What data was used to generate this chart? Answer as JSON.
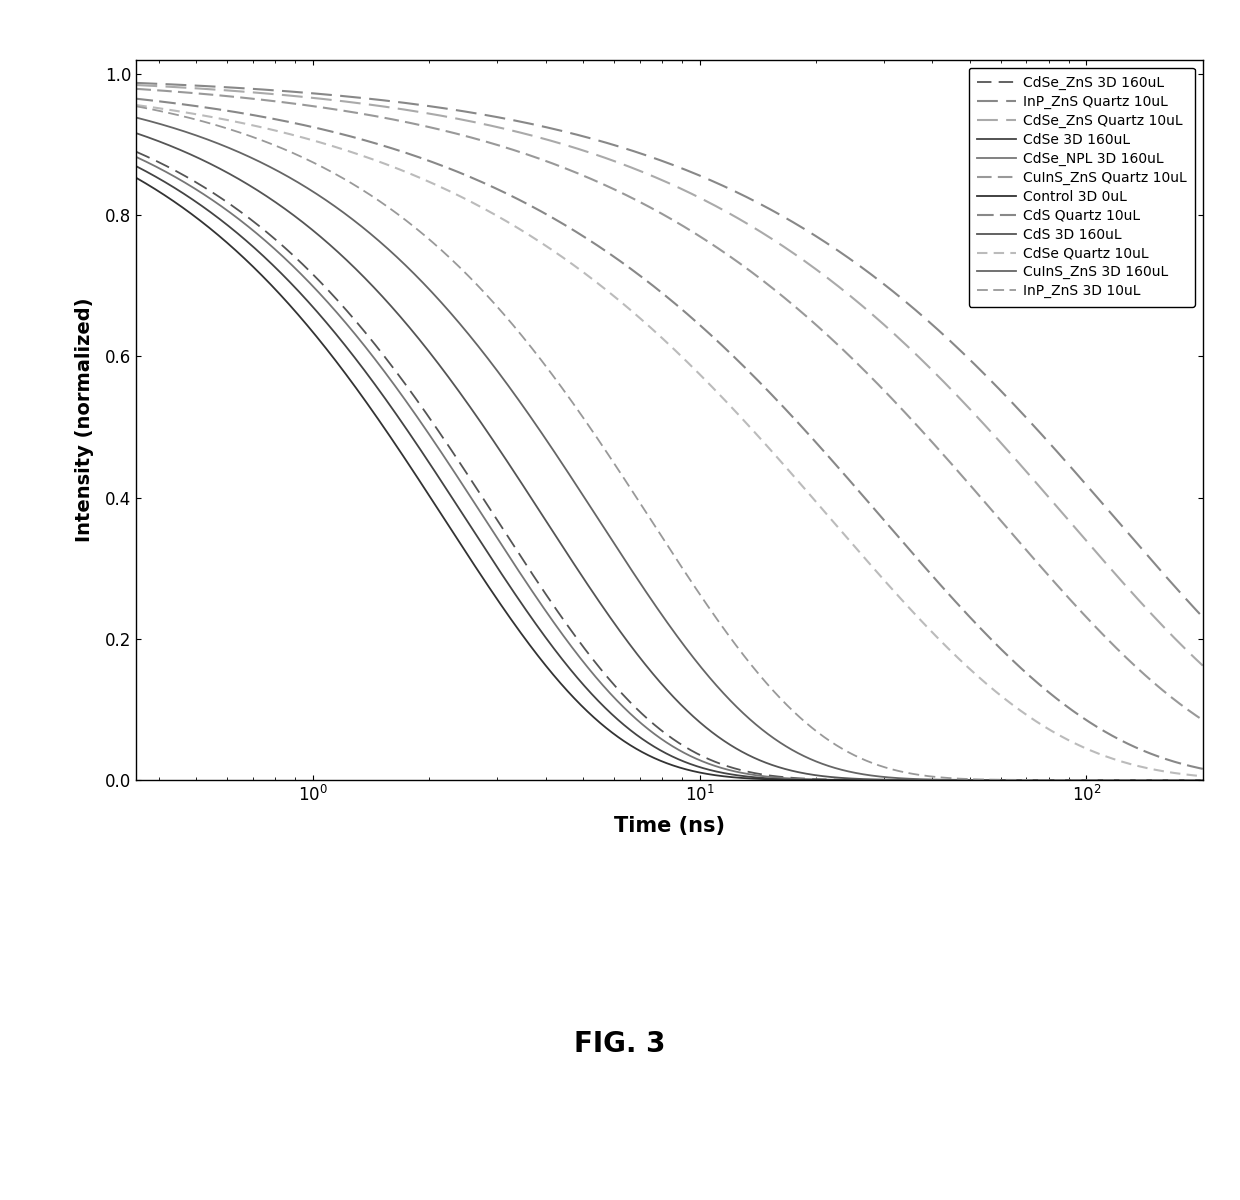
{
  "title": "",
  "xlabel": "Time (ns)",
  "ylabel": "Intensity (normalized)",
  "fig_label": "FIG. 3",
  "curves": [
    {
      "label": "CdSe_ZnS 3D 160uL",
      "tau": 3.0,
      "beta": 1.0,
      "linestyle": "--",
      "color": "#555555",
      "linewidth": 1.3,
      "dashes": [
        8,
        4
      ]
    },
    {
      "label": "InP_ZnS Quartz 10uL",
      "tau": 120.0,
      "beta": 0.75,
      "linestyle": "--",
      "color": "#888888",
      "linewidth": 1.5,
      "dashes": [
        10,
        4
      ]
    },
    {
      "label": "CdSe_ZnS Quartz 10uL",
      "tau": 90.0,
      "beta": 0.75,
      "linestyle": "--",
      "color": "#aaaaaa",
      "linewidth": 1.5,
      "dashes": [
        10,
        4
      ]
    },
    {
      "label": "CdSe 3D 160uL",
      "tau": 2.5,
      "beta": 1.0,
      "linestyle": "-",
      "color": "#444444",
      "linewidth": 1.3,
      "dashes": null
    },
    {
      "label": "CdSe_NPL 3D 160uL",
      "tau": 2.8,
      "beta": 1.0,
      "linestyle": "-",
      "color": "#777777",
      "linewidth": 1.3,
      "dashes": null
    },
    {
      "label": "CuInS_ZnS Quartz 10uL",
      "tau": 60.0,
      "beta": 0.75,
      "linestyle": "--",
      "color": "#999999",
      "linewidth": 1.5,
      "dashes": [
        7,
        3
      ]
    },
    {
      "label": "Control 3D 0uL",
      "tau": 2.2,
      "beta": 1.0,
      "linestyle": "-",
      "color": "#333333",
      "linewidth": 1.3,
      "dashes": null
    },
    {
      "label": "CdS Quartz 10uL",
      "tau": 30.0,
      "beta": 0.75,
      "linestyle": "--",
      "color": "#888888",
      "linewidth": 1.5,
      "dashes": [
        8,
        3
      ]
    },
    {
      "label": "CdS 3D 160uL",
      "tau": 4.0,
      "beta": 1.0,
      "linestyle": "-",
      "color": "#555555",
      "linewidth": 1.3,
      "dashes": null
    },
    {
      "label": "CdSe Quartz 10uL",
      "tau": 22.0,
      "beta": 0.75,
      "linestyle": "--",
      "color": "#bbbbbb",
      "linewidth": 1.5,
      "dashes": [
        5,
        3
      ]
    },
    {
      "label": "CuInS_ZnS 3D 160uL",
      "tau": 5.5,
      "beta": 1.0,
      "linestyle": "-",
      "color": "#666666",
      "linewidth": 1.3,
      "dashes": null
    },
    {
      "label": "InP_ZnS 3D 10uL",
      "tau": 7.5,
      "beta": 1.0,
      "linestyle": "--",
      "color": "#999999",
      "linewidth": 1.3,
      "dashes": [
        6,
        3
      ]
    }
  ]
}
